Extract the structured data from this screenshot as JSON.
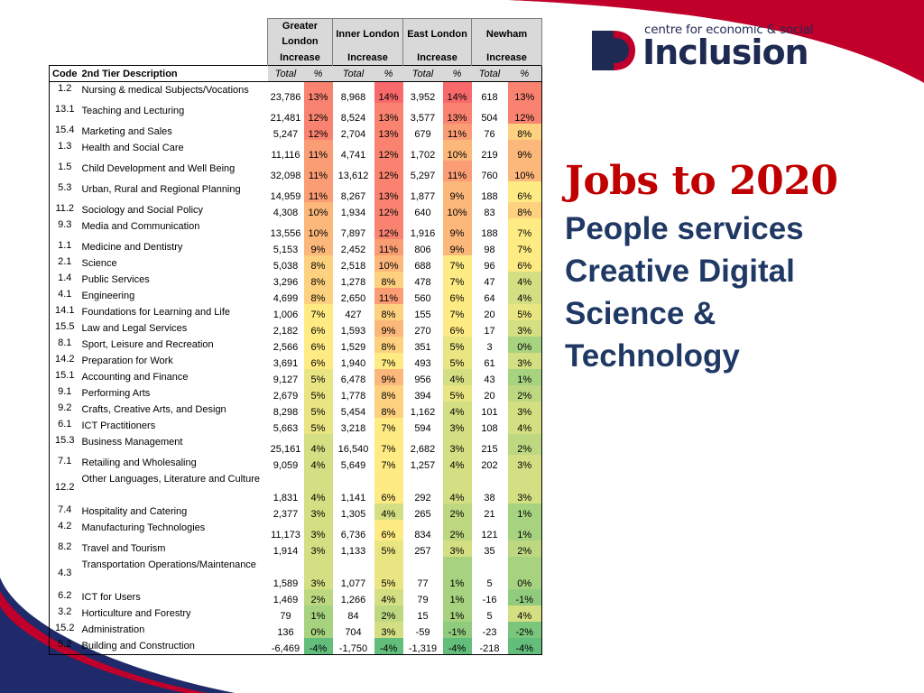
{
  "brand": {
    "small": "centre for economic & social",
    "big": "Inclusion",
    "colors": {
      "navy": "#1f2a52",
      "red": "#c0002a",
      "title_red": "#c00000",
      "sub_blue": "#1f3864"
    }
  },
  "headline": {
    "title": "Jobs to 2020",
    "lines": [
      "People services",
      "Creative Digital",
      "Science &",
      "Technology"
    ]
  },
  "table": {
    "regions": [
      "Greater London",
      "Inner London",
      "East London",
      "Newham"
    ],
    "increase_label": "Increase",
    "code_header": "Code",
    "desc_header": "2nd Tier Description",
    "total_label": "Total",
    "pct_label": "%",
    "rows": [
      {
        "code": "1.2",
        "desc": "Nursing & medical Subjects/Vocations",
        "v": [
          "23,786",
          "13%",
          "8,968",
          "14%",
          "3,952",
          "14%",
          "618",
          "13%"
        ],
        "p": [
          13,
          14,
          14,
          13
        ]
      },
      {
        "code": "13.1",
        "desc": "Teaching and Lecturing",
        "v": [
          "21,481",
          "12%",
          "8,524",
          "13%",
          "3,577",
          "13%",
          "504",
          "12%"
        ],
        "p": [
          12,
          13,
          13,
          12
        ]
      },
      {
        "code": "15.4",
        "desc": "Marketing and Sales",
        "v": [
          "5,247",
          "12%",
          "2,704",
          "13%",
          "679",
          "11%",
          "76",
          "8%"
        ],
        "p": [
          12,
          13,
          11,
          8
        ]
      },
      {
        "code": "1.3",
        "desc": "Health and Social Care",
        "v": [
          "11,116",
          "11%",
          "4,741",
          "12%",
          "1,702",
          "10%",
          "219",
          "9%"
        ],
        "p": [
          11,
          12,
          10,
          9
        ]
      },
      {
        "code": "1.5",
        "desc": "Child Development and Well Being",
        "v": [
          "32,098",
          "11%",
          "13,612",
          "12%",
          "5,297",
          "11%",
          "760",
          "10%"
        ],
        "p": [
          11,
          12,
          11,
          10
        ]
      },
      {
        "code": "5.3",
        "desc": "Urban, Rural and Regional Planning",
        "v": [
          "14,959",
          "11%",
          "8,267",
          "13%",
          "1,877",
          "9%",
          "188",
          "6%"
        ],
        "p": [
          11,
          13,
          9,
          6
        ]
      },
      {
        "code": "11.2",
        "desc": "Sociology and Social Policy",
        "v": [
          "4,308",
          "10%",
          "1,934",
          "12%",
          "640",
          "10%",
          "83",
          "8%"
        ],
        "p": [
          10,
          12,
          10,
          8
        ]
      },
      {
        "code": "9.3",
        "desc": "Media and Communication",
        "v": [
          "13,556",
          "10%",
          "7,897",
          "12%",
          "1,916",
          "9%",
          "188",
          "7%"
        ],
        "p": [
          10,
          12,
          9,
          7
        ]
      },
      {
        "code": "1.1",
        "desc": "Medicine and Dentistry",
        "v": [
          "5,153",
          "9%",
          "2,452",
          "11%",
          "806",
          "9%",
          "98",
          "7%"
        ],
        "p": [
          9,
          11,
          9,
          7
        ]
      },
      {
        "code": "2.1",
        "desc": "Science",
        "v": [
          "5,038",
          "8%",
          "2,518",
          "10%",
          "688",
          "7%",
          "96",
          "6%"
        ],
        "p": [
          8,
          10,
          7,
          6
        ]
      },
      {
        "code": "1.4",
        "desc": "Public Services",
        "v": [
          "3,296",
          "8%",
          "1,278",
          "8%",
          "478",
          "7%",
          "47",
          "4%"
        ],
        "p": [
          8,
          8,
          7,
          4
        ]
      },
      {
        "code": "4.1",
        "desc": "Engineering",
        "v": [
          "4,699",
          "8%",
          "2,650",
          "11%",
          "560",
          "6%",
          "64",
          "4%"
        ],
        "p": [
          8,
          11,
          6,
          4
        ]
      },
      {
        "code": "14.1",
        "desc": "Foundations for Learning and Life",
        "v": [
          "1,006",
          "7%",
          "427",
          "8%",
          "155",
          "7%",
          "20",
          "5%"
        ],
        "p": [
          7,
          8,
          7,
          5
        ]
      },
      {
        "code": "15.5",
        "desc": "Law and Legal Services",
        "v": [
          "2,182",
          "6%",
          "1,593",
          "9%",
          "270",
          "6%",
          "17",
          "3%"
        ],
        "p": [
          6,
          9,
          6,
          3
        ]
      },
      {
        "code": "8.1",
        "desc": "Sport, Leisure and Recreation",
        "v": [
          "2,566",
          "6%",
          "1,529",
          "8%",
          "351",
          "5%",
          "3",
          "0%"
        ],
        "p": [
          6,
          8,
          5,
          0
        ]
      },
      {
        "code": "14.2",
        "desc": "Preparation for Work",
        "v": [
          "3,691",
          "6%",
          "1,940",
          "7%",
          "493",
          "5%",
          "61",
          "3%"
        ],
        "p": [
          6,
          7,
          5,
          3
        ]
      },
      {
        "code": "15.1",
        "desc": "Accounting and Finance",
        "v": [
          "9,127",
          "5%",
          "6,478",
          "9%",
          "956",
          "4%",
          "43",
          "1%"
        ],
        "p": [
          5,
          9,
          4,
          1
        ]
      },
      {
        "code": "9.1",
        "desc": "Performing Arts",
        "v": [
          "2,679",
          "5%",
          "1,778",
          "8%",
          "394",
          "5%",
          "20",
          "2%"
        ],
        "p": [
          5,
          8,
          5,
          2
        ]
      },
      {
        "code": "9.2",
        "desc": "Crafts, Creative Arts, and Design",
        "v": [
          "8,298",
          "5%",
          "5,454",
          "8%",
          "1,162",
          "4%",
          "101",
          "3%"
        ],
        "p": [
          5,
          8,
          4,
          3
        ]
      },
      {
        "code": "6.1",
        "desc": "ICT Practitioners",
        "v": [
          "5,663",
          "5%",
          "3,218",
          "7%",
          "594",
          "3%",
          "108",
          "4%"
        ],
        "p": [
          5,
          7,
          3,
          4
        ]
      },
      {
        "code": "15.3",
        "desc": "Business Management",
        "v": [
          "25,161",
          "4%",
          "16,540",
          "7%",
          "2,682",
          "3%",
          "215",
          "2%"
        ],
        "p": [
          4,
          7,
          3,
          2
        ]
      },
      {
        "code": "7.1",
        "desc": "Retailing and Wholesaling",
        "v": [
          "9,059",
          "4%",
          "5,649",
          "7%",
          "1,257",
          "4%",
          "202",
          "3%"
        ],
        "p": [
          4,
          7,
          4,
          3
        ]
      },
      {
        "code": "12.2",
        "desc": "Other Languages, Literature and Culture",
        "v": [
          "1,831",
          "4%",
          "1,141",
          "6%",
          "292",
          "4%",
          "38",
          "3%"
        ],
        "p": [
          4,
          6,
          4,
          3
        ]
      },
      {
        "code": "7.4",
        "desc": "Hospitality and Catering",
        "v": [
          "2,377",
          "3%",
          "1,305",
          "4%",
          "265",
          "2%",
          "21",
          "1%"
        ],
        "p": [
          3,
          4,
          2,
          1
        ]
      },
      {
        "code": "4.2",
        "desc": "Manufacturing Technologies",
        "v": [
          "11,173",
          "3%",
          "6,736",
          "6%",
          "834",
          "2%",
          "121",
          "1%"
        ],
        "p": [
          3,
          6,
          2,
          1
        ]
      },
      {
        "code": "8.2",
        "desc": "Travel and Tourism",
        "v": [
          "1,914",
          "3%",
          "1,133",
          "5%",
          "257",
          "3%",
          "35",
          "2%"
        ],
        "p": [
          3,
          5,
          3,
          2
        ]
      },
      {
        "code": "4.3",
        "desc": "Transportation Operations/Maintenance",
        "v": [
          "1,589",
          "3%",
          "1,077",
          "5%",
          "77",
          "1%",
          "5",
          "0%"
        ],
        "p": [
          3,
          5,
          1,
          0
        ]
      },
      {
        "code": "6.2",
        "desc": "ICT for Users",
        "v": [
          "1,469",
          "2%",
          "1,266",
          "4%",
          "79",
          "1%",
          "-16",
          "-1%"
        ],
        "p": [
          2,
          4,
          1,
          -1
        ]
      },
      {
        "code": "3.2",
        "desc": "Horticulture and Forestry",
        "v": [
          "79",
          "1%",
          "84",
          "2%",
          "15",
          "1%",
          "5",
          "4%"
        ],
        "p": [
          1,
          2,
          1,
          4
        ]
      },
      {
        "code": "15.2",
        "desc": "Administration",
        "v": [
          "136",
          "0%",
          "704",
          "3%",
          "-59",
          "-1%",
          "-23",
          "-2%"
        ],
        "p": [
          0,
          3,
          -1,
          -2
        ]
      },
      {
        "code": "5.2",
        "desc": "Building and Construction",
        "v": [
          "-6,469",
          "-4%",
          "-1,750",
          "-4%",
          "-1,319",
          "-4%",
          "-218",
          "-4%"
        ],
        "p": [
          -4,
          -4,
          -4,
          -4
        ]
      }
    ]
  }
}
